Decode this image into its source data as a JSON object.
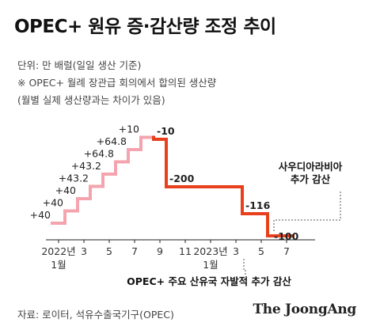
{
  "title": "OPEC+ 원유 증·감산량 조정 추이",
  "unit_note": "단위: 만 배럴(일일 생산 기준)",
  "note_1": "※ OPEC+ 월례 장관급 회의에서 합의된 생산량",
  "note_2": "(월별 실제 생산량과는 차이가 있음)",
  "source": "자료: 로이터, 석유수출국기구(OPEC)",
  "brand": "The JoongAng",
  "colors": {
    "increase": "#f4a4ae",
    "decrease": "#e8401c",
    "axis": "#222222",
    "guide": "#555555"
  },
  "chart_data": {
    "type": "line",
    "step": true,
    "x_ticks": [
      "2022년",
      "3",
      "5",
      "7",
      "9",
      "11",
      "2023년",
      "3",
      "5",
      "7"
    ],
    "x_subticks": {
      "0": "1월",
      "6": "1월"
    },
    "x": [
      "2022-01",
      "2022-02",
      "2022-03",
      "2022-04",
      "2022-05",
      "2022-06",
      "2022-07",
      "2022-08",
      "2022-09",
      "2022-10",
      "2022-11",
      "2022-12",
      "2023-01",
      "2023-02",
      "2023-03",
      "2023-04",
      "2023-05",
      "2023-06",
      "2023-07"
    ],
    "adjustments": [
      40,
      40,
      40,
      43.2,
      43.2,
      64.8,
      64.8,
      10,
      -10,
      -200,
      -200,
      -200,
      -200,
      -200,
      -200,
      -116,
      -116,
      -100,
      -100
    ],
    "point_labels": [
      {
        "i": 0,
        "text": "+40"
      },
      {
        "i": 1,
        "text": "+40"
      },
      {
        "i": 2,
        "text": "+40"
      },
      {
        "i": 3,
        "text": "+43.2"
      },
      {
        "i": 4,
        "text": "+43.2"
      },
      {
        "i": 5,
        "text": "+64.8"
      },
      {
        "i": 6,
        "text": "+64.8"
      },
      {
        "i": 7,
        "text": "+10"
      },
      {
        "i": 8,
        "text": "-10"
      },
      {
        "i": 9,
        "text": "-200"
      },
      {
        "i": 15,
        "text": "-116"
      },
      {
        "i": 17,
        "text": "-100"
      }
    ],
    "annotations": [
      {
        "i": 17,
        "lines": [
          "사우디아라비아",
          "추가 감산"
        ]
      },
      {
        "from": 15,
        "to": 18,
        "text": "OPEC+ 주요 산유국 자발적 추가 감산"
      }
    ],
    "grid": false
  }
}
